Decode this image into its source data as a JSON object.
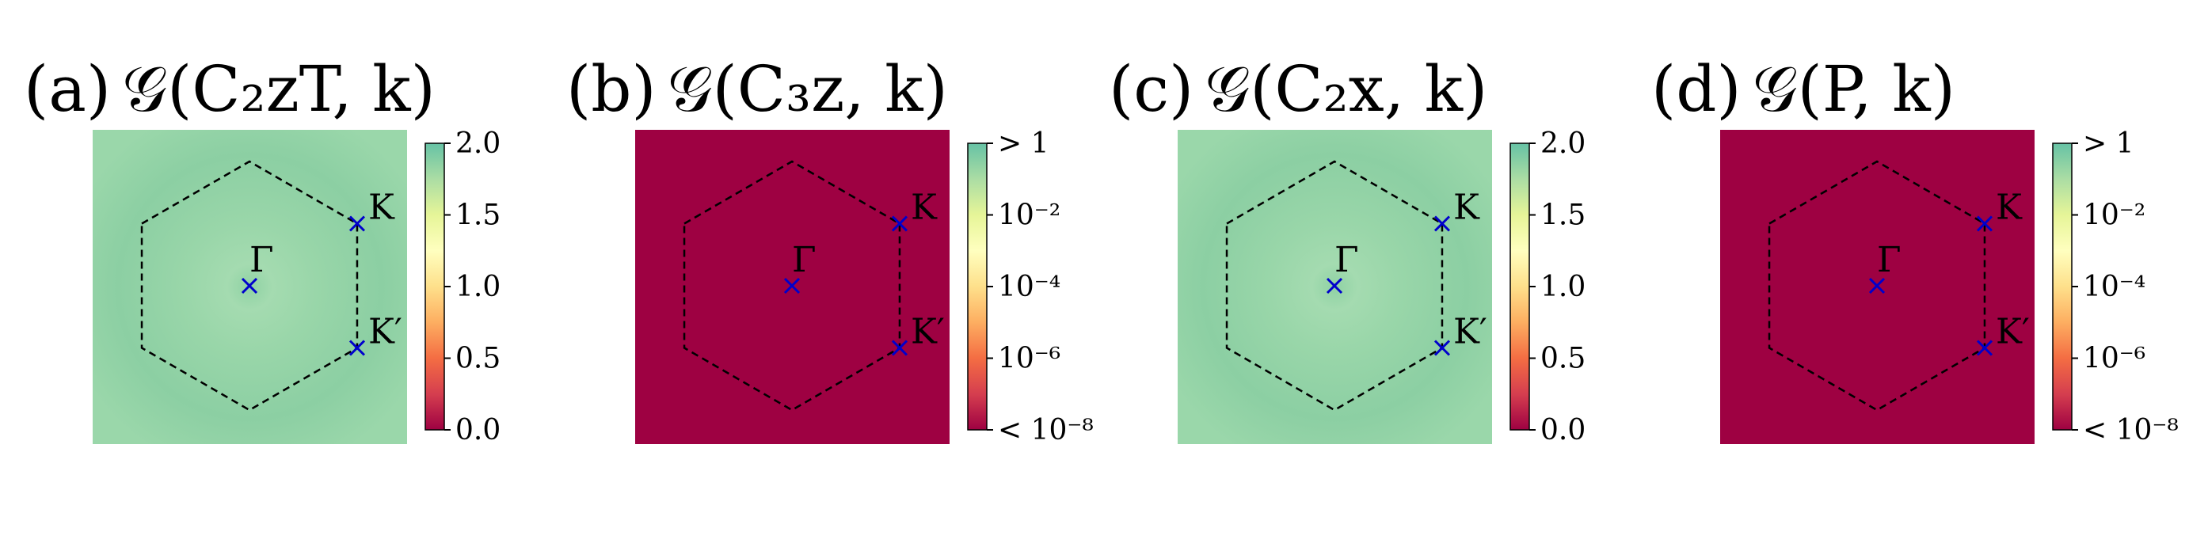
{
  "chart_data": [
    {
      "type": "heatmap",
      "panel_label": "(a)",
      "title": "𝒢(C₂zT, k)",
      "field": "uniform",
      "value": 1.9,
      "colorbar": {
        "scale": "linear",
        "range": [
          0,
          2
        ],
        "ticks": [
          "0.0",
          "0.5",
          "1.0",
          "1.5",
          "2.0"
        ]
      },
      "points": [
        {
          "label": "K"
        },
        {
          "label": "Γ"
        },
        {
          "label": "K′"
        }
      ],
      "brillouin_zone": "hexagon"
    },
    {
      "type": "heatmap",
      "panel_label": "(b)",
      "title": "𝒢(C₃z, k)",
      "field": "uniform",
      "value": "< 10⁻⁸",
      "colorbar": {
        "scale": "log",
        "range": [
          "< 10⁻⁸",
          "> 1"
        ],
        "ticks": [
          "< 10⁻⁸",
          "10⁻⁶",
          "10⁻⁴",
          "10⁻²",
          "> 1"
        ]
      },
      "points": [
        {
          "label": "K"
        },
        {
          "label": "Γ"
        },
        {
          "label": "K′"
        }
      ],
      "brillouin_zone": "hexagon"
    },
    {
      "type": "heatmap",
      "panel_label": "(c)",
      "title": "𝒢(C₂x, k)",
      "field": "uniform",
      "value": 1.9,
      "colorbar": {
        "scale": "linear",
        "range": [
          0,
          2
        ],
        "ticks": [
          "0.0",
          "0.5",
          "1.0",
          "1.5",
          "2.0"
        ]
      },
      "points": [
        {
          "label": "K"
        },
        {
          "label": "Γ"
        },
        {
          "label": "K′"
        }
      ],
      "brillouin_zone": "hexagon"
    },
    {
      "type": "heatmap",
      "panel_label": "(d)",
      "title": "𝒢(P, k)",
      "field": "uniform",
      "value": "< 10⁻⁸",
      "colorbar": {
        "scale": "log",
        "range": [
          "< 10⁻⁸",
          "> 1"
        ],
        "ticks": [
          "< 10⁻⁸",
          "10⁻⁶",
          "10⁻⁴",
          "10⁻²",
          "> 1"
        ]
      },
      "points": [
        {
          "label": "K"
        },
        {
          "label": "Γ"
        },
        {
          "label": "K′"
        }
      ],
      "brillouin_zone": "hexagon"
    }
  ],
  "colors": {
    "green_field": "#93d3a6",
    "red_field": "#9e0142",
    "point_marker": "#0000cc",
    "colormap": [
      "#9e0142",
      "#d53e4f",
      "#f46d43",
      "#fdae61",
      "#fee08b",
      "#ffffbf",
      "#e6f598",
      "#abdda4",
      "#66c2a5"
    ]
  }
}
